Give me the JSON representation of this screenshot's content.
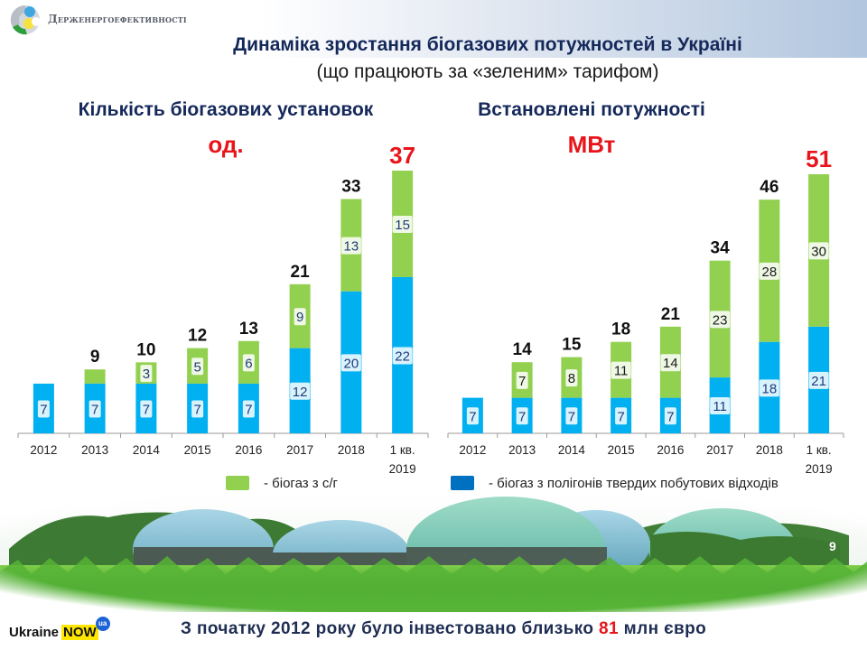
{
  "header": {
    "org_name": "Держенергоефективності",
    "title": "Динаміка зростання біогазових потужностей в Україні",
    "subtitle": "(що працюють за «зеленим» тарифом)"
  },
  "colors": {
    "green": "#92d050",
    "blue": "#00b0f0",
    "legend_blue": "#0070c0",
    "highlight_red": "#e8141b",
    "title_navy": "#14285a"
  },
  "chart_data": [
    {
      "type": "bar",
      "stacked": true,
      "title": "Кількість біогазових установок",
      "unit": "од.",
      "categories": [
        "2012",
        "2013",
        "2014",
        "2015",
        "2016",
        "2017",
        "2018",
        "1 кв. 2019"
      ],
      "category_lines": [
        [
          "2012"
        ],
        [
          "2013"
        ],
        [
          "2014"
        ],
        [
          "2015"
        ],
        [
          "2016"
        ],
        [
          "2017"
        ],
        [
          "2018"
        ],
        [
          "1 кв.",
          "2019"
        ]
      ],
      "series": [
        {
          "name": "біогаз з полігонів твердих побутових відходів",
          "color": "#00b0f0",
          "values": [
            7,
            7,
            7,
            7,
            7,
            12,
            20,
            22
          ],
          "labels": [
            "7",
            "7",
            "7",
            "7",
            "7",
            "12",
            "20",
            "22"
          ]
        },
        {
          "name": "біогаз з с/г",
          "color": "#92d050",
          "values": [
            0,
            2,
            3,
            5,
            6,
            9,
            13,
            15
          ],
          "labels": [
            "",
            "",
            "3",
            "5",
            "6",
            "9",
            "13",
            "15"
          ]
        }
      ],
      "totals": [
        "",
        "9",
        "10",
        "12",
        "13",
        "21",
        "33",
        "37"
      ],
      "highlight_last_total": true,
      "ylim": [
        0,
        37
      ],
      "grid": false
    },
    {
      "type": "bar",
      "stacked": true,
      "title": "Встановлені потужності",
      "unit": "МВт",
      "categories": [
        "2012",
        "2013",
        "2014",
        "2015",
        "2016",
        "2017",
        "2018",
        "1 кв. 2019"
      ],
      "category_lines": [
        [
          "2012"
        ],
        [
          "2013"
        ],
        [
          "2014"
        ],
        [
          "2015"
        ],
        [
          "2016"
        ],
        [
          "2017"
        ],
        [
          "2018"
        ],
        [
          "1 кв.",
          "2019"
        ]
      ],
      "series": [
        {
          "name": "біогаз з полігонів твердих побутових відходів",
          "color": "#00b0f0",
          "values": [
            7,
            7,
            7,
            7,
            7,
            11,
            18,
            21
          ],
          "labels": [
            "7",
            "7",
            "7",
            "7",
            "7",
            "11",
            "18",
            "21"
          ]
        },
        {
          "name": "біогаз з с/г",
          "color": "#92d050",
          "values": [
            0,
            7,
            8,
            11,
            14,
            23,
            28,
            30
          ],
          "labels": [
            "",
            "7",
            "8",
            "11",
            "14",
            "23",
            "28",
            "30"
          ]
        }
      ],
      "totals": [
        "",
        "14",
        "15",
        "18",
        "21",
        "34",
        "46",
        "51"
      ],
      "highlight_last_total": true,
      "ylim": [
        0,
        51
      ],
      "grid": false
    }
  ],
  "legend": [
    {
      "label": "- біогаз з с/г",
      "color": "#92d050"
    },
    {
      "label": "- біогаз з полігонів твердих побутових відходів",
      "color": "#0070c0"
    }
  ],
  "page_number": "9",
  "footer": {
    "brand_text": "Ukraine",
    "brand_now": "NOW",
    "brand_badge": "ua",
    "text_before": "З початку 2012 року було інвестовано близько ",
    "highlight": "81",
    "text_after": " млн євро"
  }
}
